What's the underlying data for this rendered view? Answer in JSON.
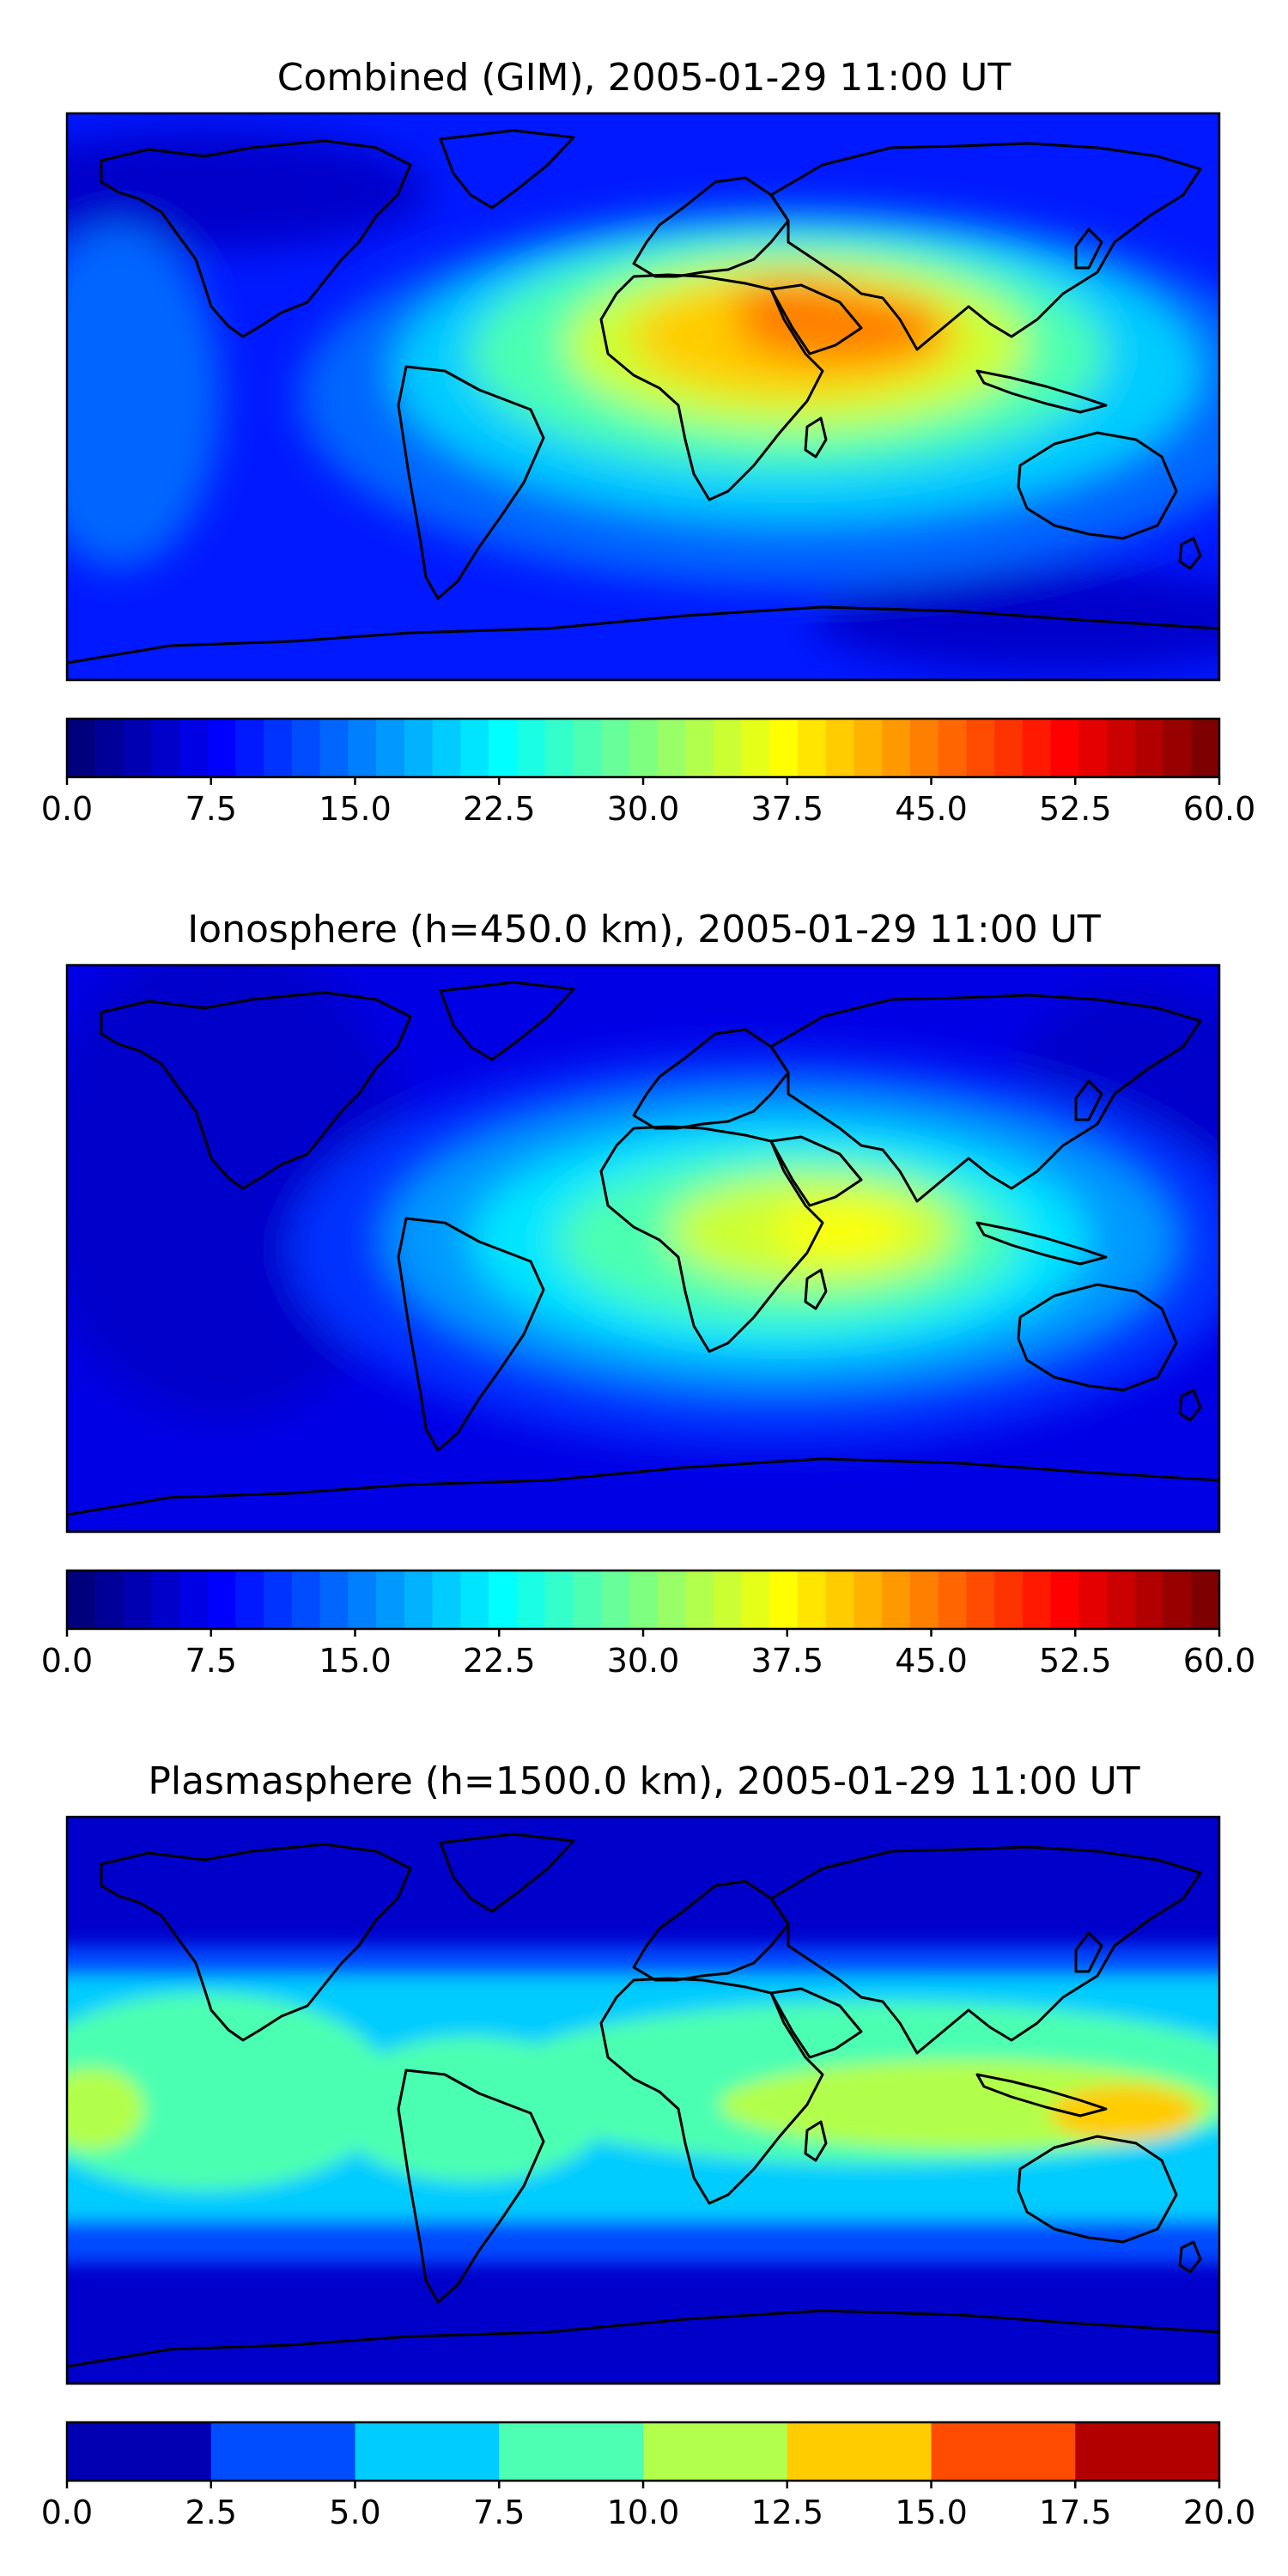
{
  "chart_data": [
    {
      "type": "heatmap",
      "title": "Combined (GIM), 2005-01-29 11:00 UT",
      "map": "world-equirectangular",
      "colorbar": {
        "min": 0,
        "max": 60,
        "step": 2.5,
        "ticks": [
          "0.0",
          "7.5",
          "15.0",
          "22.5",
          "30.0",
          "37.5",
          "45.0",
          "52.5",
          "60.0"
        ],
        "colors": [
          "#00007f",
          "#000098",
          "#0000b2",
          "#0000cb",
          "#0000e5",
          "#0000ff",
          "#0019ff",
          "#0033ff",
          "#004cff",
          "#0066ff",
          "#007fff",
          "#0099ff",
          "#00b2ff",
          "#00ccff",
          "#00e5ff",
          "#00ffff",
          "#19ffe5",
          "#33ffcc",
          "#4cffb2",
          "#66ff99",
          "#7fff7f",
          "#99ff66",
          "#b2ff4c",
          "#ccff33",
          "#e5ff19",
          "#ffff00",
          "#ffe500",
          "#ffcc00",
          "#ffb200",
          "#ff9900",
          "#ff7f00",
          "#ff6600",
          "#ff4c00",
          "#ff3300",
          "#ff1900",
          "#ff0000",
          "#e50000",
          "#cb0000",
          "#b20000",
          "#980000",
          "#7f0000"
        ]
      }
    },
    {
      "type": "heatmap",
      "title": "Ionosphere  (h=450.0 km), 2005-01-29 11:00 UT",
      "map": "world-equirectangular",
      "colorbar": {
        "min": 0,
        "max": 60,
        "step": 2.5,
        "ticks": [
          "0.0",
          "7.5",
          "15.0",
          "22.5",
          "30.0",
          "37.5",
          "45.0",
          "52.5",
          "60.0"
        ]
      }
    },
    {
      "type": "heatmap",
      "title": "Plasmasphere (h=1500.0 km), 2005-01-29 11:00 UT",
      "map": "world-equirectangular",
      "colorbar": {
        "min": 0,
        "max": 20,
        "step": 2.5,
        "ticks": [
          "0.0",
          "2.5",
          "5.0",
          "7.5",
          "10.0",
          "12.5",
          "15.0",
          "17.5",
          "20.0"
        ],
        "colors": [
          "#0000b2",
          "#004cff",
          "#00ccff",
          "#4cffb2",
          "#b2ff4c",
          "#ffcc00",
          "#ff4c00",
          "#b20000"
        ]
      }
    }
  ],
  "colors": {
    "panel1_background": "#0019ff",
    "panel2_background": "#0000e5",
    "panel3_background": "#0000cb"
  }
}
